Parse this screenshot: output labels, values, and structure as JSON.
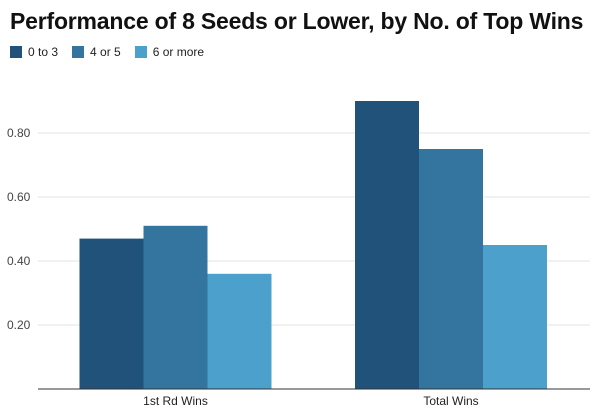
{
  "chart_data": {
    "type": "bar",
    "title": "Performance of 8 Seeds or Lower, by No. of Top Wins",
    "xlabel": "",
    "ylabel": "",
    "categories": [
      "1st Rd Wins",
      "Total Wins"
    ],
    "series": [
      {
        "name": "0 to 3",
        "color": "#21527a",
        "values": [
          0.47,
          0.9
        ]
      },
      {
        "name": "4 or 5",
        "color": "#33759f",
        "values": [
          0.51,
          0.75
        ]
      },
      {
        "name": "6 or more",
        "color": "#4ba1cc",
        "values": [
          0.36,
          0.45
        ]
      }
    ],
    "ylim": [
      0,
      1.0
    ],
    "yticks": [
      "0.20",
      "0.40",
      "0.60",
      "0.80"
    ],
    "grid": true,
    "legend": "top-left"
  }
}
